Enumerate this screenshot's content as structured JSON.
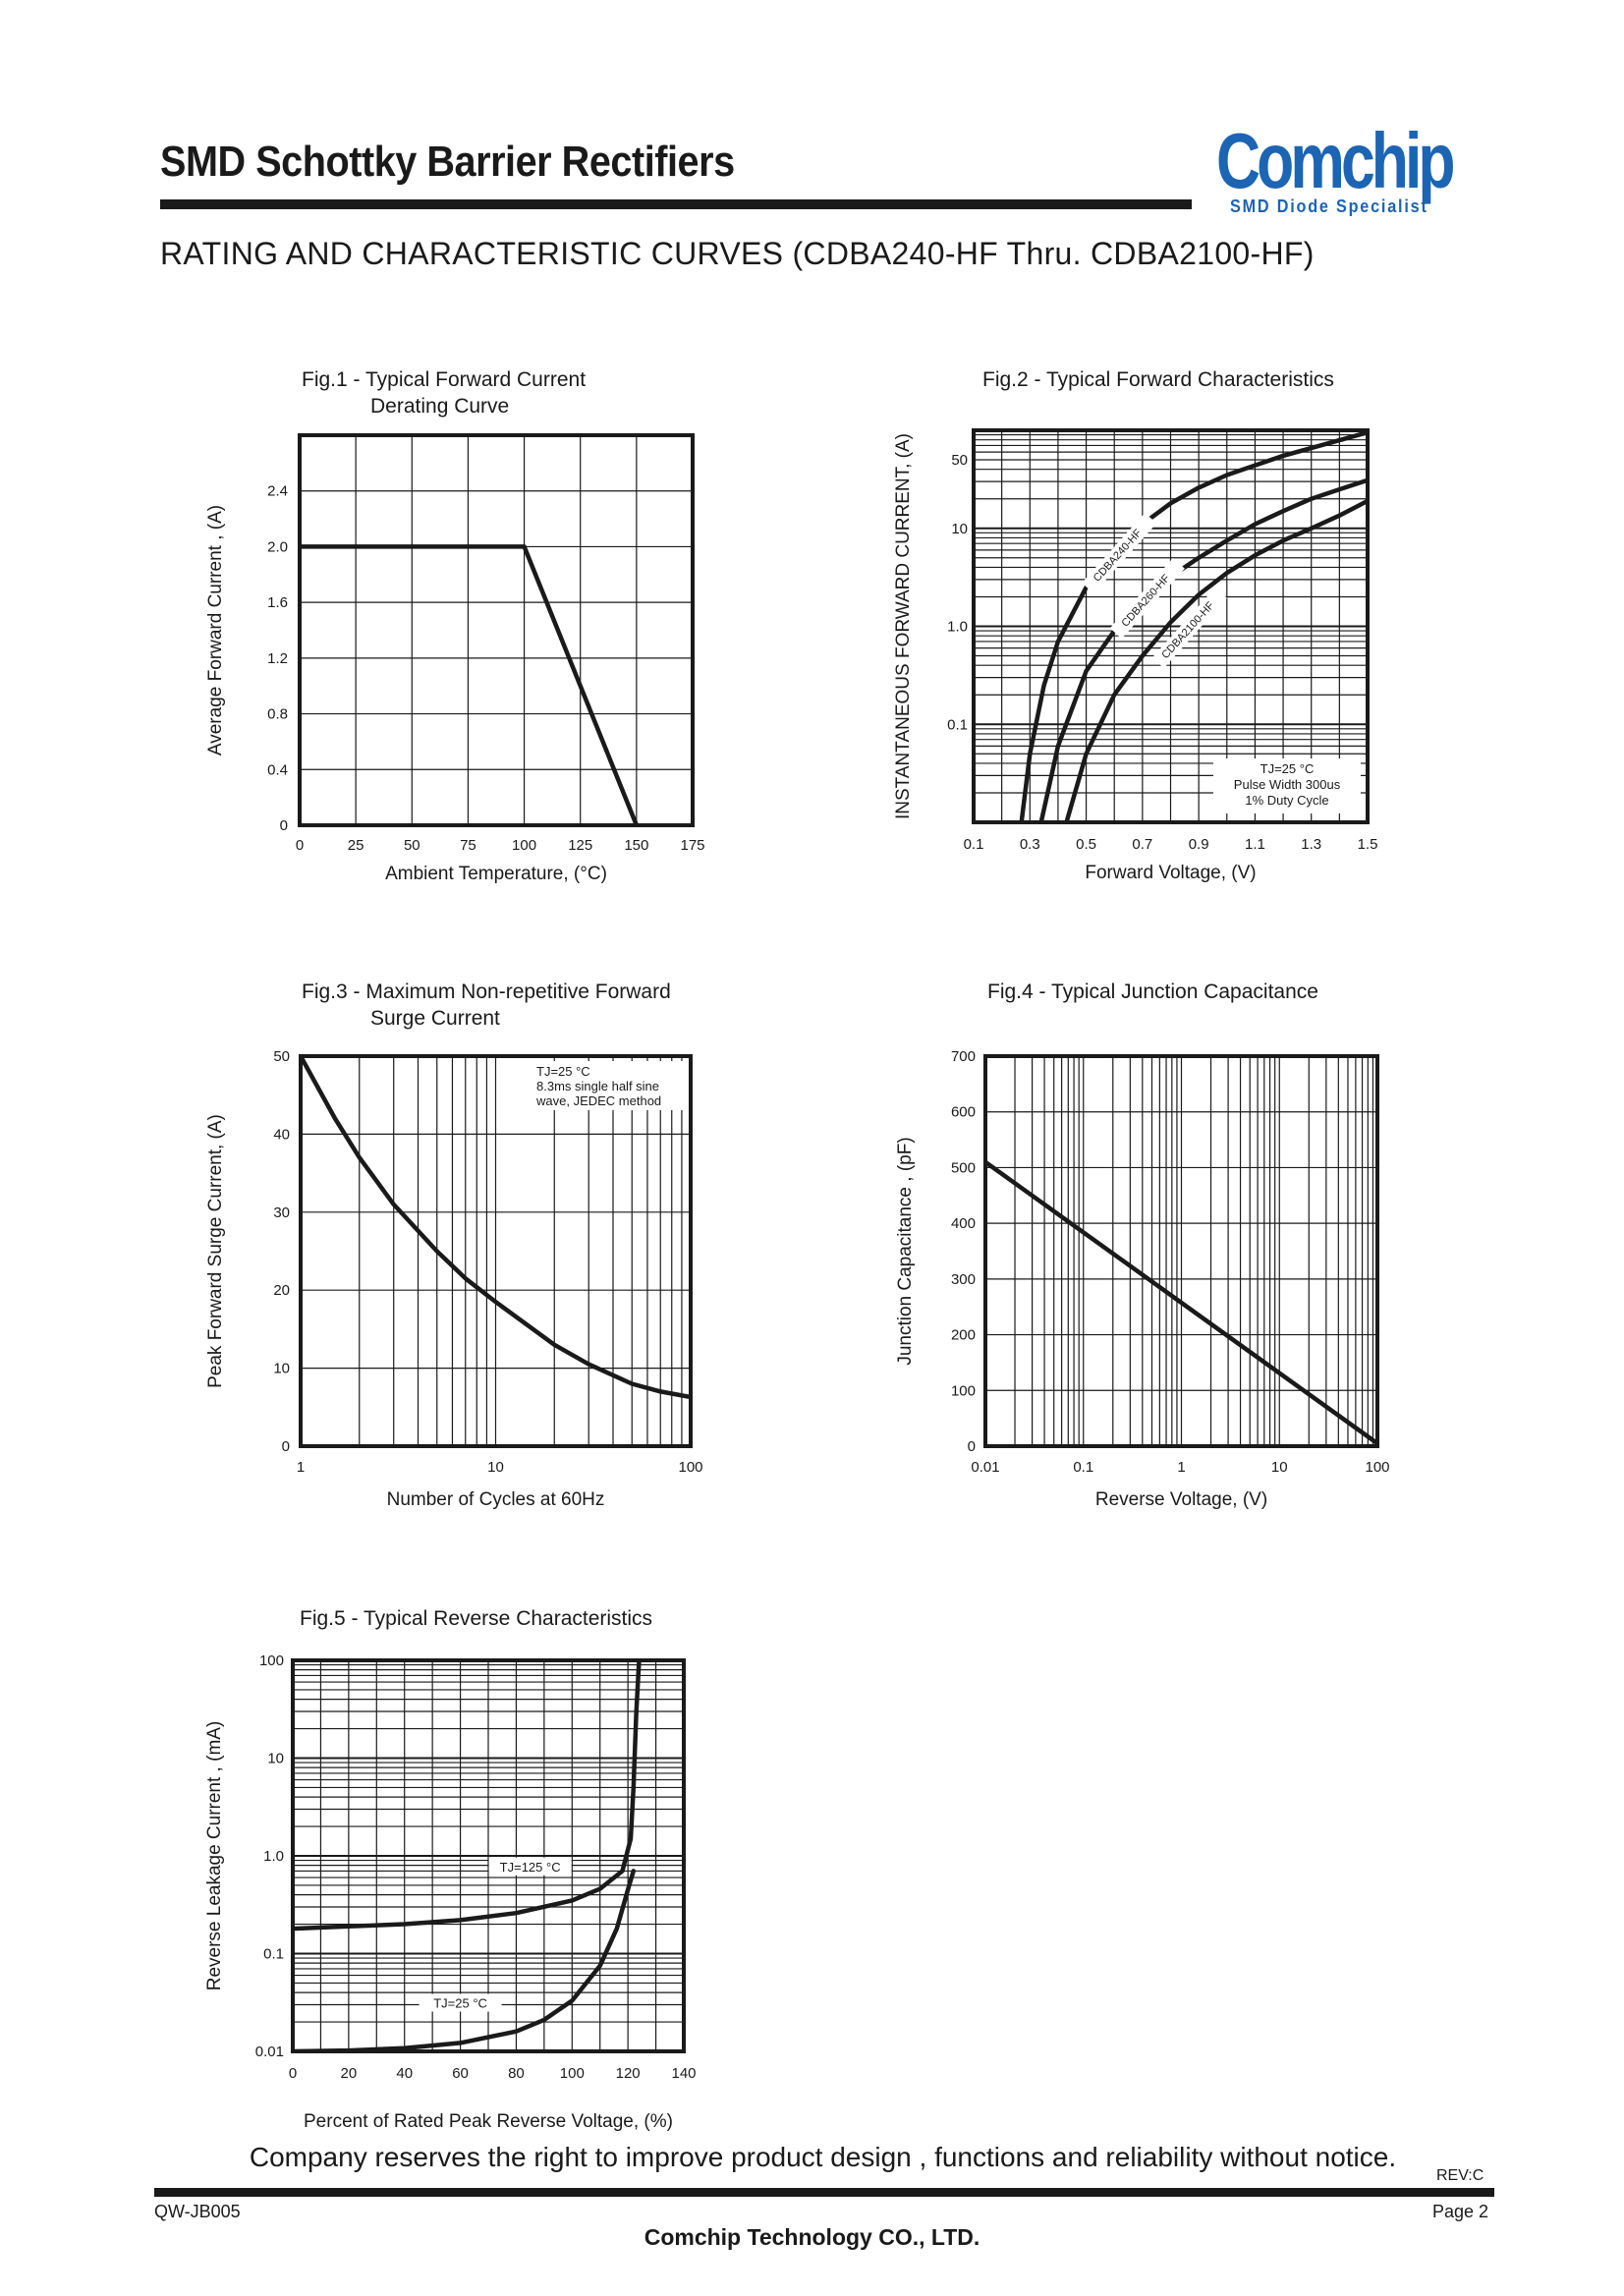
{
  "header": {
    "title": "SMD Schottky Barrier Rectifiers",
    "logo_text": "Comchip",
    "logo_tagline": "SMD Diode Specialist",
    "subtitle": "RATING AND CHARACTERISTIC CURVES (CDBA240-HF Thru. CDBA2100-HF)"
  },
  "footer": {
    "notice": "Company reserves the right to improve product design , functions and reliability without notice.",
    "rev": "REV:C",
    "doc_no": "QW-JB005",
    "page": "Page 2",
    "company": "Comchip Technology CO., LTD."
  },
  "colors": {
    "ink": "#1a1a1a",
    "brand": "#1c64b4"
  },
  "chart_data": [
    {
      "id": "fig1",
      "type": "line",
      "title": [
        "Fig.1 - Typical Forward Current",
        "Derating Curve"
      ],
      "xlabel": "Ambient Temperature, (°C)",
      "ylabel": "Average Forward Current , (A)",
      "xlim": [
        0,
        175
      ],
      "ylim": [
        0,
        2.8
      ],
      "xticks": [
        "0",
        "25",
        "50",
        "75",
        "100",
        "125",
        "150",
        "175"
      ],
      "yticks": [
        "0",
        "0.4",
        "0.8",
        "1.2",
        "1.6",
        "2.0",
        "2.4"
      ],
      "series": [
        {
          "x": [
            0,
            100,
            150
          ],
          "y": [
            2.0,
            2.0,
            0
          ]
        }
      ]
    },
    {
      "id": "fig2",
      "type": "line",
      "title": [
        "Fig.2 - Typical Forward Characteristics"
      ],
      "xlabel": "Forward Voltage, (V)",
      "ylabel": "INSTANTANEOUS FORWARD CURRENT, (A)",
      "xlim": [
        0.1,
        1.5
      ],
      "ylim": [
        0.01,
        100
      ],
      "yscale": "log",
      "xticks": [
        "0.1",
        "0.3",
        "0.5",
        "0.7",
        "0.9",
        "1.1",
        "1.3",
        "1.5"
      ],
      "yticks": [
        "0.1",
        "1.0",
        "10",
        "50"
      ],
      "annotation": [
        "TJ=25 °C",
        "Pulse Width 300us",
        "1% Duty Cycle"
      ],
      "series": [
        {
          "name": "CDBA240-HF",
          "x": [
            0.27,
            0.3,
            0.35,
            0.4,
            0.5,
            0.6,
            0.7,
            0.8,
            0.9,
            1.0,
            1.2,
            1.5
          ],
          "y": [
            0.01,
            0.05,
            0.25,
            0.7,
            2.5,
            6,
            11,
            18,
            26,
            35,
            55,
            95
          ]
        },
        {
          "name": "CDBA260-HF",
          "x": [
            0.34,
            0.4,
            0.5,
            0.6,
            0.7,
            0.8,
            0.9,
            1.0,
            1.1,
            1.2,
            1.3,
            1.4,
            1.5
          ],
          "y": [
            0.01,
            0.06,
            0.35,
            0.9,
            1.8,
            3.2,
            5,
            7.5,
            11,
            15,
            20,
            25,
            31
          ]
        },
        {
          "name": "CDBA2100-HF",
          "x": [
            0.43,
            0.5,
            0.6,
            0.7,
            0.8,
            0.9,
            1.0,
            1.1,
            1.2,
            1.3,
            1.4,
            1.5
          ],
          "y": [
            0.01,
            0.05,
            0.2,
            0.5,
            1.1,
            2.1,
            3.5,
            5.3,
            7.5,
            10,
            13.5,
            19
          ]
        }
      ]
    },
    {
      "id": "fig3",
      "type": "line",
      "title": [
        "Fig.3 - Maximum  Non-repetitive Forward",
        "Surge Current"
      ],
      "xlabel": "Number of Cycles at 60Hz",
      "ylabel": "Peak Forward Surge Current, (A)",
      "xlim": [
        1,
        100
      ],
      "xscale": "log",
      "ylim": [
        0,
        50
      ],
      "xticks": [
        "1",
        "10",
        "100"
      ],
      "yticks": [
        "0",
        "10",
        "20",
        "30",
        "40",
        "50"
      ],
      "annotation": [
        "TJ=25 °C",
        "8.3ms single half sine",
        "wave, JEDEC method"
      ],
      "series": [
        {
          "x": [
            1,
            1.5,
            2,
            3,
            5,
            7,
            10,
            20,
            30,
            50,
            70,
            100
          ],
          "y": [
            50,
            42,
            37,
            31,
            25,
            21.5,
            18.5,
            13,
            10.5,
            8,
            7,
            6.3
          ]
        }
      ]
    },
    {
      "id": "fig4",
      "type": "line",
      "title": [
        "Fig.4 - Typical  Junction Capacitance"
      ],
      "xlabel": "Reverse Voltage, (V)",
      "ylabel": "Junction Capacitance , (pF)",
      "xlim": [
        0.01,
        100
      ],
      "xscale": "log",
      "ylim": [
        0,
        700
      ],
      "xticks": [
        "0.01",
        "0.1",
        "1",
        "10",
        "100"
      ],
      "yticks": [
        "0",
        "100",
        "200",
        "300",
        "400",
        "500",
        "600",
        "700"
      ],
      "series": [
        {
          "x": [
            0.01,
            100
          ],
          "y": [
            510,
            5
          ]
        }
      ]
    },
    {
      "id": "fig5",
      "type": "line",
      "title": [
        "Fig.5 - Typical Reverse Characteristics"
      ],
      "xlabel": "Percent of Rated Peak Reverse Voltage, (%)",
      "ylabel": "Reverse Leakage Current , (mA)",
      "xlim": [
        0,
        140
      ],
      "ylim": [
        0.01,
        100
      ],
      "yscale": "log",
      "xticks": [
        "0",
        "20",
        "40",
        "60",
        "80",
        "100",
        "120",
        "140"
      ],
      "yticks": [
        "0.01",
        "0.1",
        "1.0",
        "10",
        "100"
      ],
      "series": [
        {
          "name": "TJ=125 °C",
          "x": [
            0,
            20,
            40,
            60,
            80,
            100,
            110,
            118,
            121,
            122,
            123,
            124
          ],
          "y": [
            0.18,
            0.19,
            0.2,
            0.22,
            0.26,
            0.35,
            0.46,
            0.7,
            1.5,
            5,
            30,
            100
          ]
        },
        {
          "name": "TJ=25 °C",
          "x": [
            0,
            20,
            40,
            60,
            80,
            90,
            100,
            110,
            116,
            120,
            122
          ],
          "y": [
            0.01,
            0.0102,
            0.0108,
            0.0122,
            0.016,
            0.021,
            0.033,
            0.075,
            0.18,
            0.45,
            0.7
          ]
        }
      ]
    }
  ]
}
